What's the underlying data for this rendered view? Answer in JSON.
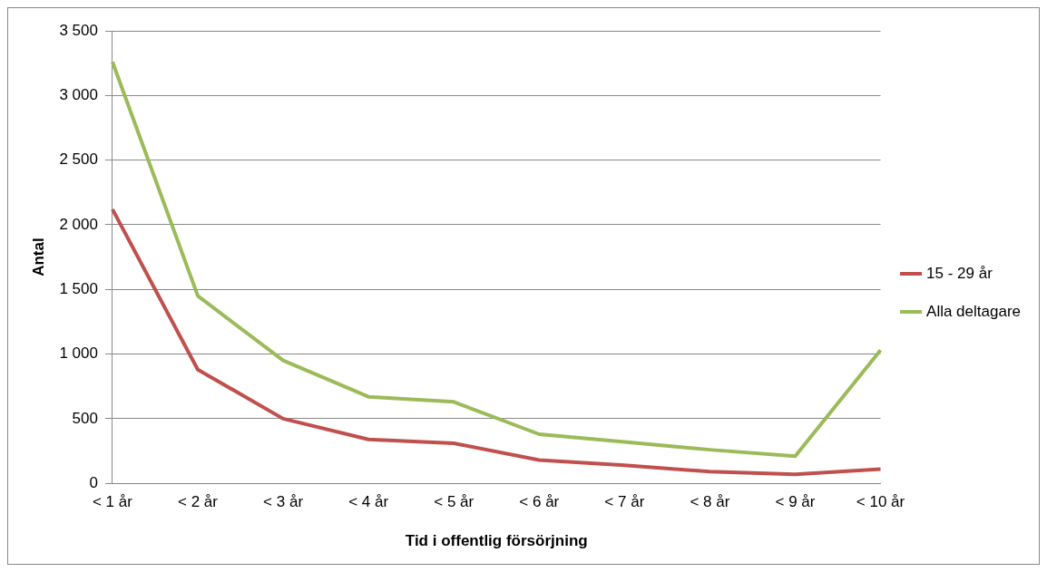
{
  "chart_data": {
    "type": "line",
    "xlabel": "Tid i offentlig försörjning",
    "ylabel": "Antal",
    "categories": [
      "< 1 år",
      "< 2 år",
      "< 3 år",
      "< 4 år",
      "< 5 år",
      "< 6 år",
      "< 7 år",
      "< 8 år",
      "< 9 år",
      "< 10 år"
    ],
    "series": [
      {
        "name": "15 - 29 år",
        "color": "#c0504d",
        "values": [
          2120,
          880,
          500,
          340,
          310,
          180,
          140,
          90,
          70,
          110
        ]
      },
      {
        "name": "Alla deltagare",
        "color": "#9bbb59",
        "values": [
          3260,
          1450,
          950,
          670,
          630,
          380,
          320,
          260,
          210,
          1030
        ]
      }
    ],
    "ylim": [
      0,
      3500
    ],
    "yticks": [
      0,
      500,
      {
        "value": 1000,
        "label": "1 000"
      },
      {
        "value": 1500,
        "label": "1 500"
      },
      {
        "value": 2000,
        "label": "2 000"
      },
      {
        "value": 2500,
        "label": "2 500"
      },
      {
        "value": 3000,
        "label": "3 000"
      },
      {
        "value": 3500,
        "label": "3 500"
      }
    ],
    "grid": "y",
    "legend": "right",
    "marker": "none"
  }
}
